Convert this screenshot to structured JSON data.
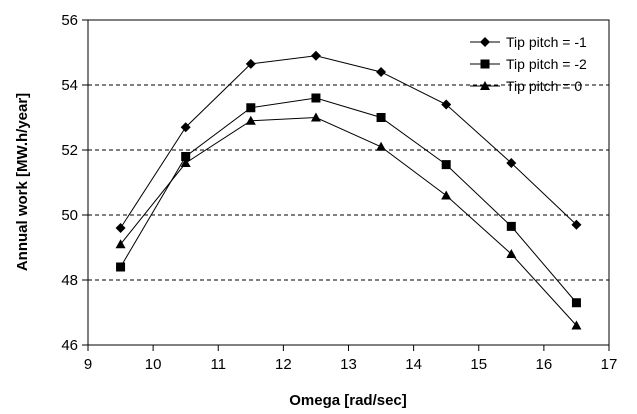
{
  "chart_data": {
    "type": "line",
    "title": "",
    "xlabel": "Omega [rad/sec]",
    "ylabel": "Annual work [MW.h/year]",
    "xlim": [
      9,
      17
    ],
    "ylim": [
      46,
      56
    ],
    "xticks": [
      "9",
      "10",
      "11",
      "12",
      "13",
      "14",
      "15",
      "16",
      "17"
    ],
    "yticks": [
      "46",
      "48",
      "50",
      "52",
      "54",
      "56"
    ],
    "grid": "horizontal dashed",
    "legend_position": "top-right",
    "x": [
      9.5,
      10.5,
      11.5,
      12.5,
      13.5,
      14.5,
      15.5,
      16.5
    ],
    "series": [
      {
        "name": "Tip pitch = -1",
        "marker": "diamond",
        "values": [
          49.6,
          52.7,
          54.65,
          54.9,
          54.4,
          53.4,
          51.6,
          49.7
        ]
      },
      {
        "name": "Tip pitch = -2",
        "marker": "square",
        "values": [
          48.4,
          51.8,
          53.3,
          53.6,
          53.0,
          51.55,
          49.65,
          47.3
        ]
      },
      {
        "name": "Tip pitch = 0",
        "marker": "triangle",
        "values": [
          49.1,
          51.6,
          52.9,
          53.0,
          52.1,
          50.6,
          48.8,
          46.6
        ]
      }
    ]
  }
}
